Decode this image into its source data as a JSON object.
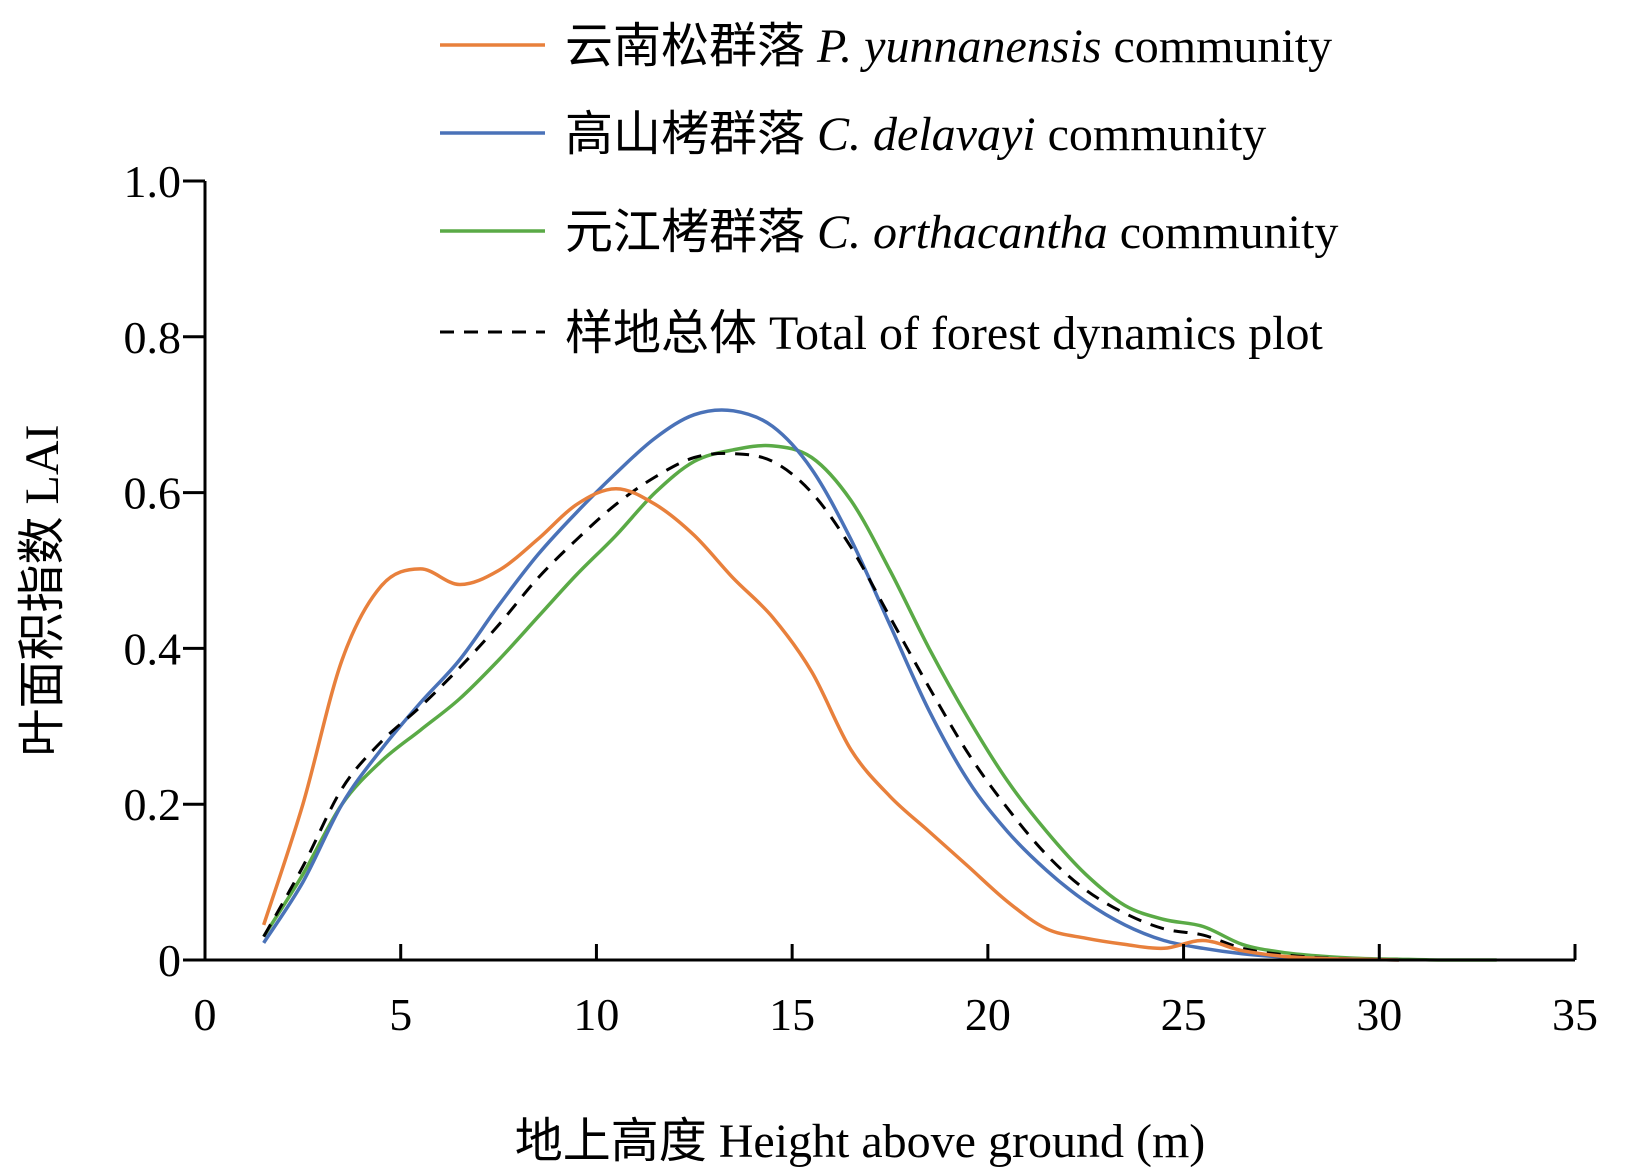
{
  "chart_data": {
    "type": "line",
    "xlabel": "地上高度 Height above ground (m)",
    "ylabel": "叶面积指数 LAI",
    "xlim": [
      0,
      35
    ],
    "ylim": [
      0,
      1.0
    ],
    "x_ticks": [
      0,
      5,
      10,
      15,
      20,
      25,
      30,
      35
    ],
    "y_ticks": [
      0,
      0.2,
      0.4,
      0.6,
      0.8,
      1.0
    ],
    "x_tick_labels": [
      "0",
      "5",
      "10",
      "15",
      "20",
      "25",
      "30",
      "35"
    ],
    "y_tick_labels": [
      "0",
      "0.2",
      "0.4",
      "0.6",
      "0.8",
      "1.0"
    ],
    "grid": false,
    "legend_position": "top-right",
    "series": [
      {
        "name_cn": "云南松群落",
        "name_sci": "P. yunnanensis",
        "name_suffix": "community",
        "color": "#E8803C",
        "dash": "solid",
        "x": [
          1.5,
          2.5,
          3.5,
          4.5,
          5.5,
          6.5,
          7.5,
          8.5,
          9.5,
          10.5,
          11.5,
          12.5,
          13.5,
          14.5,
          15.5,
          16.5,
          17.5,
          18.5,
          19.5,
          20.5,
          21.5,
          22.5,
          23.5,
          24.5,
          25.5,
          26.5,
          27.5,
          28.5,
          29.5,
          30.5
        ],
        "y": [
          0.045,
          0.2,
          0.385,
          0.48,
          0.502,
          0.482,
          0.5,
          0.54,
          0.585,
          0.605,
          0.585,
          0.545,
          0.49,
          0.44,
          0.37,
          0.27,
          0.21,
          0.165,
          0.12,
          0.075,
          0.04,
          0.028,
          0.02,
          0.015,
          0.025,
          0.012,
          0.005,
          0.002,
          0.001,
          0.0
        ]
      },
      {
        "name_cn": "高山栲群落",
        "name_sci": "C. delavayi",
        "name_suffix": "community",
        "color": "#4A72B8",
        "dash": "solid",
        "x": [
          1.5,
          2.5,
          3.5,
          4.5,
          5.5,
          6.5,
          7.5,
          8.5,
          9.5,
          10.5,
          11.5,
          12.5,
          13.5,
          14.5,
          15.5,
          16.5,
          17.5,
          18.5,
          19.5,
          20.5,
          21.5,
          22.5,
          23.5,
          24.5,
          25.5,
          26.5,
          27.5,
          28.5,
          29.5,
          30.5
        ],
        "y": [
          0.022,
          0.1,
          0.2,
          0.27,
          0.33,
          0.385,
          0.455,
          0.52,
          0.575,
          0.625,
          0.67,
          0.7,
          0.705,
          0.685,
          0.63,
          0.54,
          0.43,
          0.32,
          0.23,
          0.165,
          0.115,
          0.075,
          0.045,
          0.025,
          0.015,
          0.008,
          0.004,
          0.002,
          0.001,
          0.0
        ]
      },
      {
        "name_cn": "元江栲群落",
        "name_sci": "C. orthacantha",
        "name_suffix": "community",
        "color": "#5AAA46",
        "dash": "solid",
        "x": [
          1.5,
          2.5,
          3.5,
          4.5,
          5.5,
          6.5,
          7.5,
          8.5,
          9.5,
          10.5,
          11.5,
          12.5,
          13.5,
          14.5,
          15.5,
          16.5,
          17.5,
          18.5,
          19.5,
          20.5,
          21.5,
          22.5,
          23.5,
          24.5,
          25.5,
          26.5,
          27.5,
          28.5,
          29.5,
          30.5,
          31.5,
          32.5,
          33.0
        ],
        "y": [
          0.03,
          0.11,
          0.2,
          0.255,
          0.295,
          0.335,
          0.385,
          0.44,
          0.495,
          0.545,
          0.6,
          0.64,
          0.655,
          0.66,
          0.645,
          0.59,
          0.5,
          0.4,
          0.31,
          0.23,
          0.165,
          0.11,
          0.07,
          0.052,
          0.043,
          0.02,
          0.01,
          0.005,
          0.002,
          0.001,
          0.0,
          0.0,
          0.0
        ]
      },
      {
        "name_cn": "样地总体",
        "name_sci": "",
        "name_suffix": "Total of forest dynamics plot",
        "color": "#000000",
        "dash": "dashed",
        "x": [
          1.5,
          2.5,
          3.5,
          4.5,
          5.5,
          6.5,
          7.5,
          8.5,
          9.5,
          10.5,
          11.5,
          12.5,
          13.5,
          14.5,
          15.5,
          16.5,
          17.5,
          18.5,
          19.5,
          20.5,
          21.5,
          22.5,
          23.5,
          24.5,
          25.5,
          26.5,
          27.5,
          28.5,
          29.5,
          30.5
        ],
        "y": [
          0.03,
          0.12,
          0.22,
          0.28,
          0.325,
          0.375,
          0.43,
          0.49,
          0.54,
          0.585,
          0.62,
          0.645,
          0.65,
          0.64,
          0.6,
          0.53,
          0.44,
          0.35,
          0.265,
          0.195,
          0.135,
          0.09,
          0.06,
          0.04,
          0.032,
          0.015,
          0.007,
          0.003,
          0.001,
          0.0
        ]
      }
    ]
  }
}
